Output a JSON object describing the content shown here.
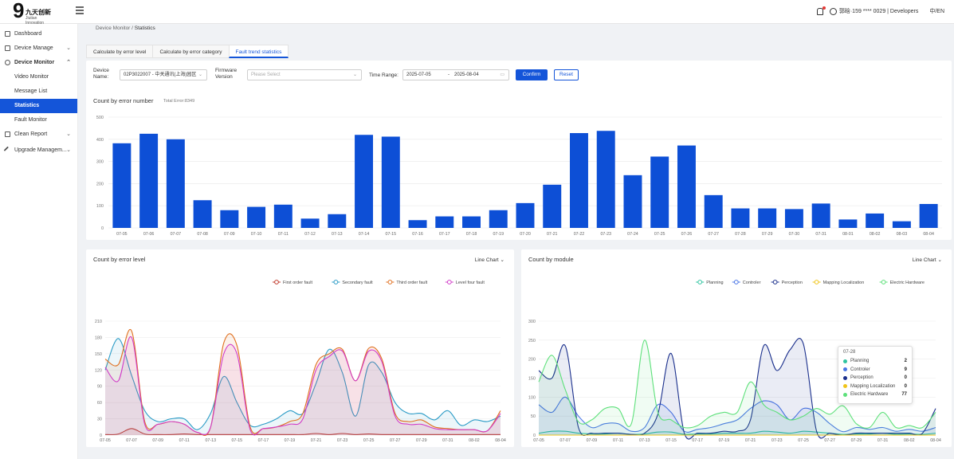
{
  "header": {
    "logo_mark": "9",
    "logo_cn": "九天创新",
    "logo_en": "Jiutian Innovation",
    "user_text": "郭晗·159 **** 0029 | Developers",
    "lang": "中/EN",
    "icons": [
      "menu-toggle-icon",
      "bell-icon",
      "user-icon"
    ]
  },
  "sidebar": {
    "items": [
      {
        "label": "Dashboard",
        "icon": "dashboard-icon"
      },
      {
        "label": "Device Manage",
        "icon": "device-icon",
        "chevron": "⌄"
      },
      {
        "label": "Device Monitor",
        "icon": "monitor-icon",
        "chevron": "⌃"
      },
      {
        "label": "Video Monitor"
      },
      {
        "label": "Message List"
      },
      {
        "label": "Statistics"
      },
      {
        "label": "Fault Monitor"
      },
      {
        "label": "Clean Report",
        "icon": "report-icon",
        "chevron": "⌄"
      },
      {
        "label": "Upgrade Managem...",
        "icon": "wrench-icon",
        "chevron": "⌄"
      }
    ]
  },
  "breadcrumb": {
    "parent": "Device Monitor /",
    "current": "Statistics"
  },
  "tabs": [
    "Calculate by error level",
    "Calculate by error category",
    "Fault trend statistics"
  ],
  "filters": {
    "device_label": "Device Name:",
    "device_value": "02P3022007 - 中关通讯(上海)园区",
    "firmware_label": "Firmware Version",
    "firmware_placeholder": "Please Select",
    "time_label": "Time Range:",
    "date_from": "2025-07-05",
    "date_sep": "-",
    "date_to": "2025-08-04",
    "confirm": "Confirm",
    "reset": "Reset"
  },
  "bar_panel": {
    "title": "Count by error number",
    "total": "Total Error:8349"
  },
  "level_panel": {
    "title": "Count by error level",
    "dropdown": "Line Chart ⌄"
  },
  "module_panel": {
    "title": "Count by module",
    "dropdown": "Line Chart ⌄"
  },
  "tooltip": {
    "date": "07-28",
    "rows": [
      {
        "name": "Planning",
        "value": "2"
      },
      {
        "name": "Controler",
        "value": "9"
      },
      {
        "name": "Perception",
        "value": "0"
      },
      {
        "name": "Mapping Localization",
        "value": "0"
      },
      {
        "name": "Electric Hardware",
        "value": "77"
      }
    ]
  },
  "chart_data": [
    {
      "type": "bar",
      "title": "Count by error number",
      "categories": [
        "07-05",
        "07-06",
        "07-07",
        "07-08",
        "07-09",
        "07-10",
        "07-11",
        "07-12",
        "07-13",
        "07-14",
        "07-15",
        "07-16",
        "07-17",
        "07-18",
        "07-19",
        "07-20",
        "07-21",
        "07-22",
        "07-23",
        "07-24",
        "07-25",
        "07-26",
        "07-27",
        "07-28",
        "07-29",
        "07-30",
        "07-31",
        "08-01",
        "08-02",
        "08-03",
        "08-04"
      ],
      "values": [
        382,
        425,
        400,
        125,
        80,
        95,
        105,
        42,
        62,
        420,
        412,
        35,
        52,
        52,
        80,
        112,
        195,
        428,
        438,
        238,
        322,
        372,
        148,
        88,
        88,
        85,
        110,
        38,
        65,
        30,
        108
      ],
      "ylim": [
        0,
        500
      ],
      "yticks": [
        0,
        100,
        200,
        300,
        400,
        500
      ],
      "color": "#0d4fd6",
      "grid": true
    },
    {
      "type": "area",
      "title": "Count by error level",
      "x": [
        "07-05",
        "07-06",
        "07-07",
        "07-08",
        "07-09",
        "07-10",
        "07-11",
        "07-12",
        "07-13",
        "07-14",
        "07-15",
        "07-16",
        "07-17",
        "07-18",
        "07-19",
        "07-20",
        "07-21",
        "07-22",
        "07-23",
        "07-24",
        "07-25",
        "07-26",
        "07-27",
        "07-28",
        "07-29",
        "07-30",
        "07-31",
        "08-01",
        "08-02",
        "08-03",
        "08-04"
      ],
      "xticks": [
        "07-05",
        "07-07",
        "07-09",
        "07-11",
        "07-13",
        "07-15",
        "07-17",
        "07-19",
        "07-21",
        "07-23",
        "07-25",
        "07-27",
        "07-29",
        "07-31",
        "08-02",
        "08-04"
      ],
      "ylim": [
        0,
        210
      ],
      "yticks": [
        0,
        30,
        60,
        90,
        120,
        150,
        180,
        210
      ],
      "legend_position": "top-right",
      "series": [
        {
          "name": "First order fault",
          "color": "#c0392b",
          "values": [
            1,
            2,
            12,
            2,
            1,
            1,
            2,
            1,
            1,
            1,
            1,
            1,
            1,
            1,
            1,
            1,
            3,
            1,
            3,
            1,
            2,
            1,
            1,
            1,
            1,
            1,
            1,
            1,
            1,
            1,
            1
          ]
        },
        {
          "name": "Secondary fault",
          "color": "#2a9bc6",
          "values": [
            120,
            178,
            110,
            45,
            25,
            30,
            30,
            10,
            40,
            108,
            60,
            18,
            20,
            30,
            45,
            40,
            95,
            158,
            115,
            35,
            130,
            115,
            60,
            40,
            40,
            28,
            45,
            18,
            28,
            25,
            35
          ]
        },
        {
          "name": "Third order fault",
          "color": "#e07020",
          "values": [
            140,
            130,
            192,
            25,
            20,
            25,
            20,
            5,
            15,
            170,
            165,
            15,
            12,
            15,
            25,
            40,
            130,
            150,
            158,
            100,
            160,
            140,
            40,
            25,
            28,
            15,
            12,
            10,
            10,
            8,
            45
          ]
        },
        {
          "name": "Level four fault",
          "color": "#d13cc8",
          "values": [
            125,
            100,
            180,
            20,
            20,
            25,
            20,
            5,
            15,
            150,
            150,
            10,
            12,
            15,
            20,
            30,
            120,
            145,
            155,
            100,
            155,
            135,
            35,
            20,
            20,
            12,
            10,
            10,
            10,
            8,
            40
          ]
        }
      ]
    },
    {
      "type": "area",
      "title": "Count by module",
      "x": [
        "07-05",
        "07-06",
        "07-07",
        "07-08",
        "07-09",
        "07-10",
        "07-11",
        "07-12",
        "07-13",
        "07-14",
        "07-15",
        "07-16",
        "07-17",
        "07-18",
        "07-19",
        "07-20",
        "07-21",
        "07-22",
        "07-23",
        "07-24",
        "07-25",
        "07-26",
        "07-27",
        "07-28",
        "07-29",
        "07-30",
        "07-31",
        "08-01",
        "08-02",
        "08-03",
        "08-04"
      ],
      "xticks": [
        "07-05",
        "07-07",
        "07-09",
        "07-11",
        "07-13",
        "07-15",
        "07-17",
        "07-19",
        "07-21",
        "07-23",
        "07-25",
        "07-27",
        "07-29",
        "07-31",
        "08-02",
        "08-04"
      ],
      "ylim": [
        0,
        300
      ],
      "yticks": [
        0,
        50,
        100,
        150,
        200,
        250,
        300
      ],
      "legend_position": "top-right",
      "series": [
        {
          "name": "Planning",
          "color": "#2fc4a0",
          "values": [
            5,
            10,
            10,
            5,
            3,
            3,
            5,
            2,
            3,
            8,
            8,
            2,
            3,
            3,
            5,
            5,
            5,
            10,
            8,
            5,
            10,
            8,
            5,
            2,
            3,
            3,
            5,
            2,
            3,
            2,
            5
          ]
        },
        {
          "name": "Controler",
          "color": "#4a76e6",
          "values": [
            80,
            60,
            100,
            50,
            20,
            30,
            30,
            10,
            20,
            80,
            60,
            10,
            15,
            20,
            30,
            40,
            70,
            90,
            80,
            40,
            70,
            60,
            30,
            9,
            20,
            15,
            20,
            10,
            15,
            10,
            20
          ]
        },
        {
          "name": "Perception",
          "color": "#1a2f8c",
          "values": [
            170,
            150,
            235,
            20,
            5,
            5,
            5,
            2,
            5,
            55,
            215,
            5,
            5,
            5,
            10,
            10,
            40,
            235,
            170,
            225,
            240,
            10,
            5,
            0,
            5,
            5,
            5,
            5,
            5,
            5,
            70
          ]
        },
        {
          "name": "Mapping Localization",
          "color": "#f0c419",
          "values": [
            0,
            0,
            0,
            0,
            0,
            0,
            0,
            0,
            0,
            0,
            0,
            0,
            0,
            0,
            0,
            0,
            0,
            0,
            0,
            0,
            0,
            0,
            0,
            0,
            0,
            0,
            0,
            0,
            0,
            0,
            0
          ]
        },
        {
          "name": "Electric Hardware",
          "color": "#5de07a",
          "values": [
            140,
            210,
            120,
            35,
            40,
            70,
            70,
            30,
            250,
            60,
            40,
            20,
            25,
            50,
            60,
            60,
            140,
            80,
            60,
            40,
            50,
            70,
            55,
            77,
            30,
            20,
            60,
            20,
            25,
            20,
            60
          ]
        }
      ]
    }
  ]
}
